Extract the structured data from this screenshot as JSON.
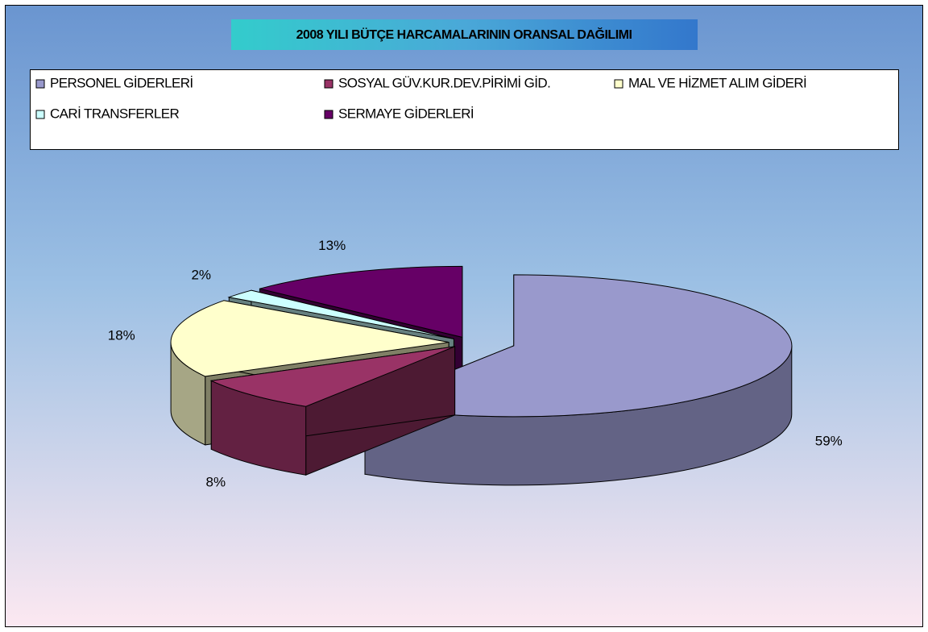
{
  "chart_data": {
    "type": "pie3d",
    "title": "2008 YILI  BÜTÇE HARCAMALARININ ORANSAL DAĞILIMI",
    "categories": [
      "PERSONEL GİDERLERİ",
      "SOSYAL GÜV.KUR.DEV.PİRİMİ GİD.",
      "MAL VE HİZMET ALIM GİDERİ",
      "CARİ TRANSFERLER",
      "SERMAYE GİDERLERİ"
    ],
    "values": [
      59,
      8,
      18,
      2,
      13
    ],
    "value_labels": [
      "59%",
      "8%",
      "18%",
      "2%",
      "13%"
    ],
    "colors": [
      "#9999cc",
      "#993366",
      "#ffffcc",
      "#ccffff",
      "#660066"
    ],
    "legend": "top"
  }
}
